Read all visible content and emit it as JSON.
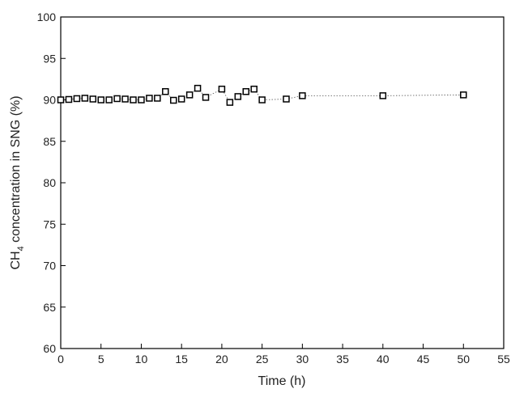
{
  "chart_data": {
    "type": "scatter",
    "xlabel": "Time (h)",
    "ylabel_parts": [
      "CH",
      "4",
      " concentration in SNG (%)"
    ],
    "x": [
      0,
      1,
      2,
      3,
      4,
      5,
      6,
      7,
      8,
      9,
      10,
      11,
      12,
      13,
      14,
      15,
      16,
      17,
      18,
      20,
      21,
      22,
      23,
      24,
      25,
      28,
      30,
      40,
      50
    ],
    "series": [
      {
        "color": "#000000",
        "values": [
          90.0,
          90.05,
          90.15,
          90.2,
          90.1,
          90.0,
          90.0,
          90.15,
          90.1,
          90.0,
          90.0,
          90.2,
          90.2,
          91.0,
          89.95,
          90.1,
          90.6,
          91.4,
          90.3,
          91.3,
          89.7,
          90.4,
          91.0,
          91.3,
          90.0,
          90.1,
          90.5,
          90.5,
          90.6
        ]
      }
    ],
    "xlim": [
      0,
      55
    ],
    "xticks": [
      0,
      5,
      10,
      15,
      20,
      25,
      30,
      35,
      40,
      45,
      50,
      55
    ],
    "ylim": [
      60,
      100
    ],
    "yticks": [
      60,
      65,
      70,
      75,
      80,
      85,
      90,
      95,
      100
    ]
  }
}
